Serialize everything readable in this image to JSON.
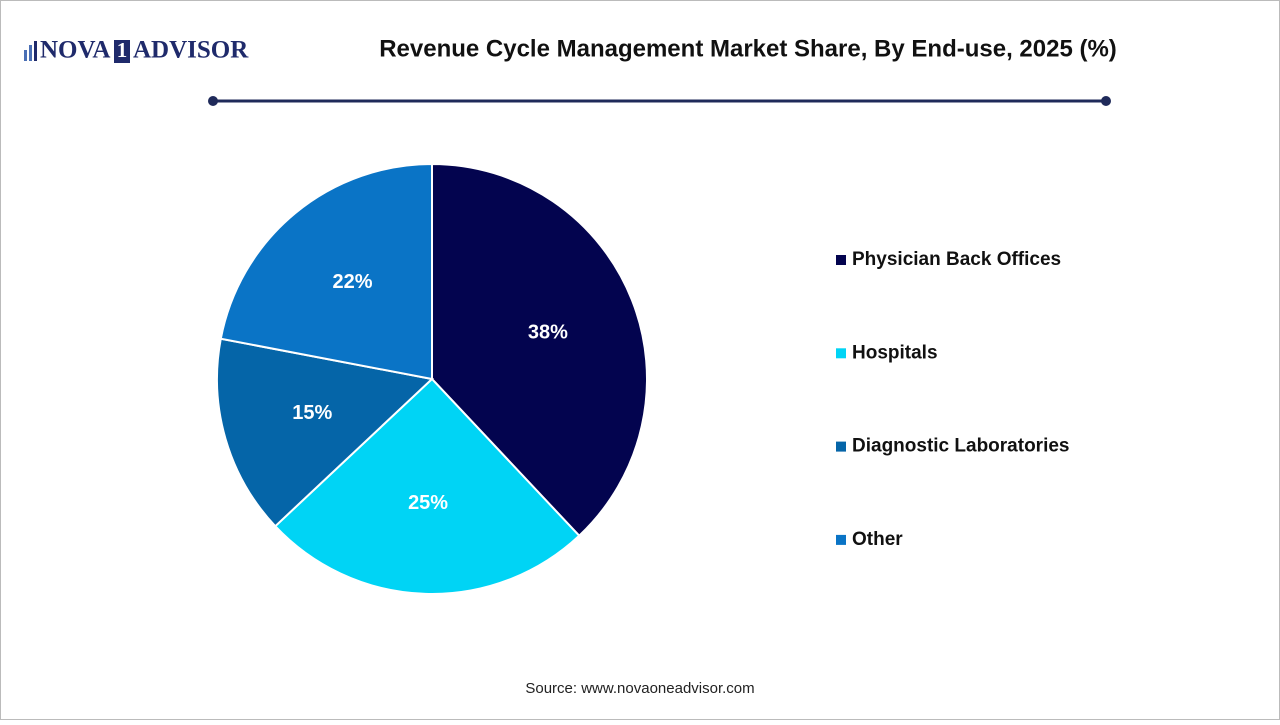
{
  "logo": [
    "NOVA",
    "1",
    "ADVISOR"
  ],
  "chart_data": {
    "type": "pie",
    "title": "Revenue Cycle Management Market Share, By End-use, 2025 (%)",
    "categories": [
      "Physician Back Offices",
      "Hospitals",
      "Diagnostic Laboratories",
      "Other"
    ],
    "values": [
      38,
      25,
      15,
      22
    ],
    "value_labels": [
      "38%",
      "25%",
      "15%",
      "22%"
    ],
    "colors": [
      "#03044f",
      "#00d4f5",
      "#0565a8",
      "#0a74c6"
    ],
    "source": "Source: www.novaoneadvisor.com"
  }
}
